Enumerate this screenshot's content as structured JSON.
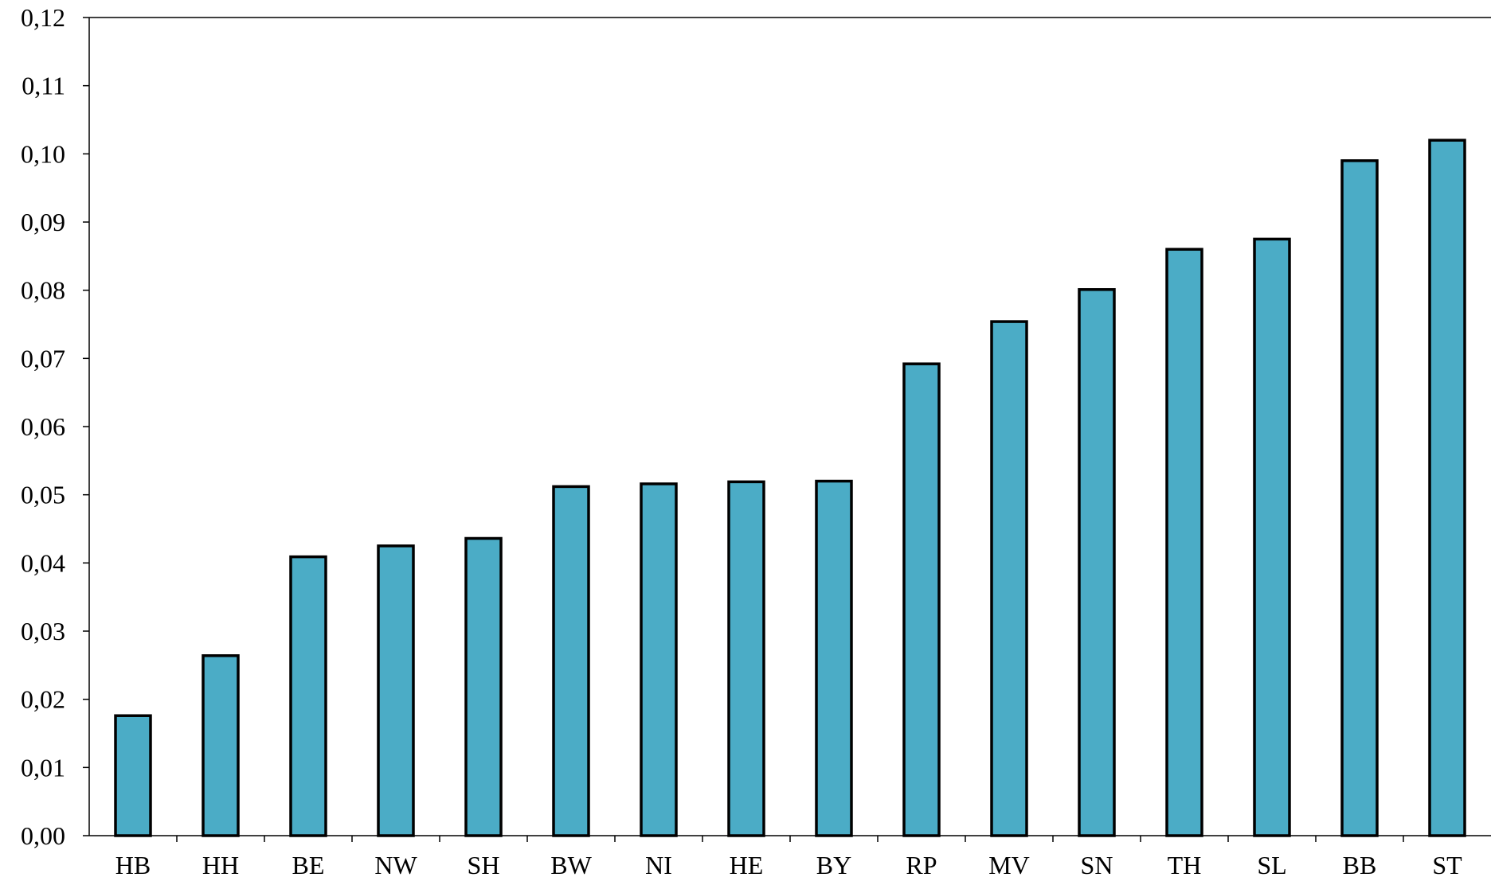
{
  "chart_data": {
    "type": "bar",
    "title": "",
    "xlabel": "",
    "ylabel": "",
    "categories": [
      "HB",
      "HH",
      "BE",
      "NW",
      "SH",
      "BW",
      "NI",
      "HE",
      "BY",
      "RP",
      "MV",
      "SN",
      "TH",
      "SL",
      "BB",
      "ST"
    ],
    "values": [
      0.0176,
      0.0264,
      0.0409,
      0.0425,
      0.0436,
      0.0512,
      0.0516,
      0.0519,
      0.052,
      0.0692,
      0.0754,
      0.0801,
      0.086,
      0.0875,
      0.099,
      0.102
    ],
    "ylim": [
      0,
      0.12
    ],
    "yticks": [
      "0,00",
      "0,01",
      "0,02",
      "0,03",
      "0,04",
      "0,05",
      "0,06",
      "0,07",
      "0,08",
      "0,09",
      "0,10",
      "0,11",
      "0,12"
    ],
    "grid": false,
    "legend": "none",
    "colors": {
      "bar_fill": "#4BACC6",
      "bar_stroke": "#000000",
      "axis": "#000000"
    }
  }
}
